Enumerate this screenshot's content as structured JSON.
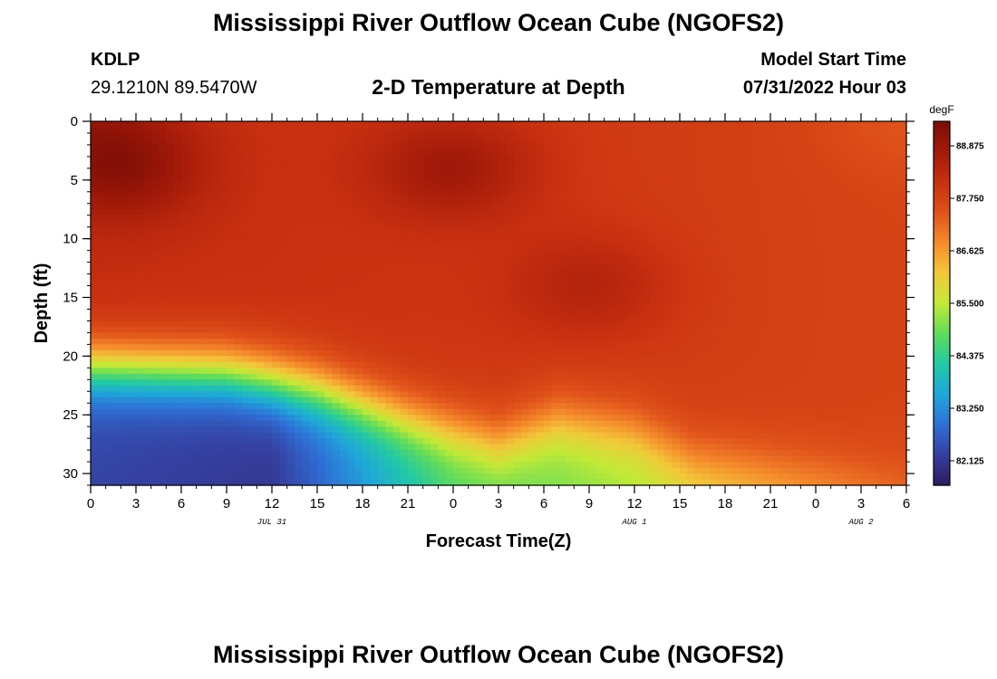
{
  "header": {
    "title": "Mississippi River Outflow Ocean Cube (NGOFS2)",
    "station_id": "KDLP",
    "coordinates": "29.1210N  89.5470W",
    "subtitle": "2-D Temperature at Depth",
    "model_start_label": "Model Start Time",
    "model_start_value": "07/31/2022 Hour 03"
  },
  "footer": {
    "title": "Mississippi River Outflow Ocean Cube (NGOFS2)"
  },
  "chart_data": {
    "type": "heatmap",
    "title": "2-D Temperature at Depth",
    "xlabel": "Forecast Time(Z)",
    "ylabel": "Depth (ft)",
    "x_range": [
      0,
      54
    ],
    "x_unit": "hours since 07/31 00Z",
    "x_ticks": [
      0,
      3,
      6,
      9,
      12,
      15,
      18,
      21,
      24,
      27,
      30,
      33,
      36,
      39,
      42,
      45,
      48,
      51,
      54
    ],
    "x_tick_labels": [
      "0",
      "3",
      "6",
      "9",
      "12",
      "15",
      "18",
      "21",
      "0",
      "3",
      "6",
      "9",
      "12",
      "15",
      "18",
      "21",
      "0",
      "3",
      "6"
    ],
    "date_labels": [
      {
        "hour": 12,
        "label": "JUL 31"
      },
      {
        "hour": 36,
        "label": "AUG 1"
      },
      {
        "hour": 51,
        "label": "AUG 2"
      }
    ],
    "y_range": [
      0,
      31
    ],
    "y_inverted": true,
    "y_ticks": [
      0,
      5,
      10,
      15,
      20,
      25,
      30
    ],
    "y_tick_labels": [
      "0",
      "5",
      "10",
      "15",
      "20",
      "25",
      "30"
    ],
    "colorbar": {
      "unit": "degF",
      "min": 81.6,
      "max": 89.4,
      "ticks": [
        82.125,
        83.25,
        84.375,
        85.5,
        86.625,
        87.75,
        88.875
      ],
      "tick_labels": [
        "82.125",
        "83.250",
        "84.375",
        "85.500",
        "86.625",
        "87.750",
        "88.875"
      ],
      "colors": [
        "#2b1a5e",
        "#3540a0",
        "#2f6fd6",
        "#1fa7d9",
        "#22c9a4",
        "#5fdc5a",
        "#c3e936",
        "#f2c83a",
        "#f58b2c",
        "#e0521a",
        "#c83010",
        "#a31a0a",
        "#7a0d05"
      ]
    },
    "surface_temperature_degF": [
      {
        "hour": 0,
        "depth_ft": 0,
        "value": 88.6
      },
      {
        "hour": 2,
        "depth_ft": 4,
        "value": 89.2
      },
      {
        "hour": 24,
        "depth_ft": 4,
        "value": 89.1
      },
      {
        "hour": 33,
        "depth_ft": 14,
        "value": 88.8
      },
      {
        "hour": 54,
        "depth_ft": 0,
        "value": 87.9
      }
    ],
    "thermocline_depth_ft": [
      {
        "hour": 0,
        "depth": 21.0
      },
      {
        "hour": 9,
        "depth": 21.5
      },
      {
        "hour": 15,
        "depth": 23.0
      },
      {
        "hour": 21,
        "depth": 25.5
      },
      {
        "hour": 27,
        "depth": 27.5
      },
      {
        "hour": 31,
        "depth": 25.5
      },
      {
        "hour": 36,
        "depth": 26.5
      },
      {
        "hour": 40,
        "depth": 28.8
      },
      {
        "hour": 46,
        "depth": 29.5
      },
      {
        "hour": 54,
        "depth": 30.2
      }
    ],
    "bottom_temperature_degF": [
      {
        "hour": 0,
        "value": 82.3
      },
      {
        "hour": 12,
        "value": 82.1
      },
      {
        "hour": 24,
        "value": 84.6
      },
      {
        "hour": 36,
        "value": 85.3
      },
      {
        "hour": 54,
        "value": 87.0
      }
    ]
  }
}
